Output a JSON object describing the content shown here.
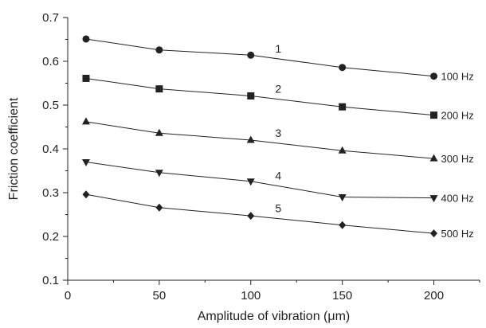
{
  "chart_data": {
    "type": "line",
    "xlabel": "Amplitude of vibration (μm)",
    "ylabel": "Friction coefficient",
    "xlim": [
      0,
      225
    ],
    "ylim": [
      0.1,
      0.7
    ],
    "x_ticks": [
      "0",
      "50",
      "100",
      "150",
      "200"
    ],
    "y_ticks": [
      "0.1",
      "0.2",
      "0.3",
      "0.4",
      "0.5",
      "0.6",
      "0.7"
    ],
    "x": [
      10,
      50,
      100,
      150,
      200
    ],
    "grid": false,
    "series": [
      {
        "name": "100 Hz",
        "number": "1",
        "marker": "circle",
        "values": [
          0.651,
          0.626,
          0.614,
          0.586,
          0.566
        ]
      },
      {
        "name": "200 Hz",
        "number": "2",
        "marker": "square",
        "values": [
          0.561,
          0.537,
          0.521,
          0.496,
          0.477
        ]
      },
      {
        "name": "300 Hz",
        "number": "3",
        "marker": "triangle-up",
        "values": [
          0.462,
          0.436,
          0.42,
          0.396,
          0.378
        ]
      },
      {
        "name": "400 Hz",
        "number": "4",
        "marker": "triangle-down",
        "values": [
          0.37,
          0.346,
          0.326,
          0.29,
          0.288
        ]
      },
      {
        "name": "500 Hz",
        "number": "5",
        "marker": "diamond",
        "values": [
          0.296,
          0.266,
          0.247,
          0.226,
          0.207
        ]
      }
    ]
  }
}
